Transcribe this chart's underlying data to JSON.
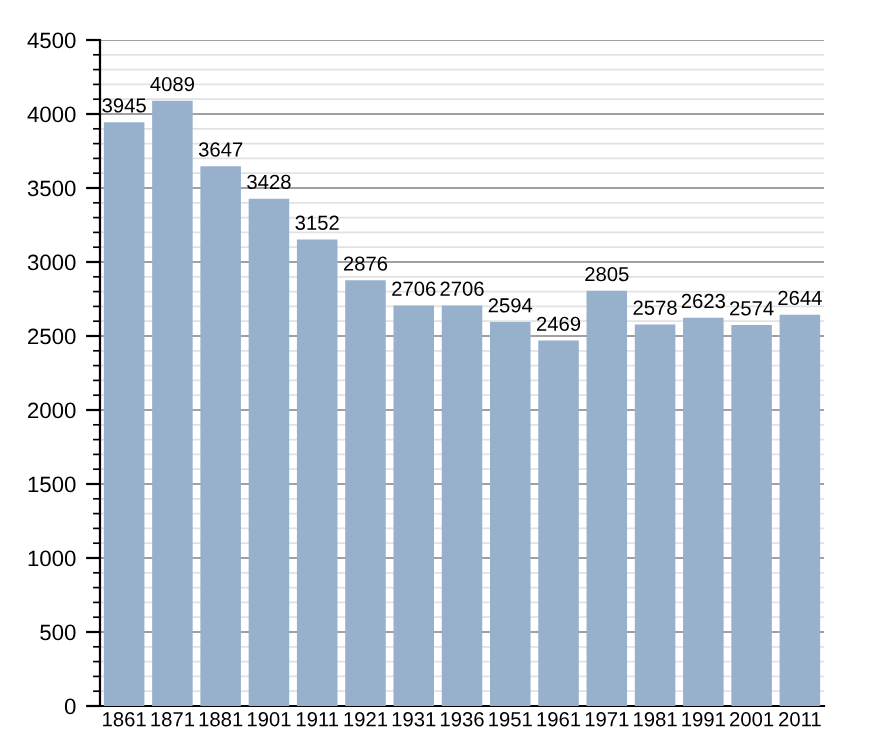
{
  "chart_data": {
    "type": "bar",
    "categories": [
      "1861",
      "1871",
      "1881",
      "1901",
      "1911",
      "1921",
      "1931",
      "1936",
      "1951",
      "1961",
      "1971",
      "1981",
      "1991",
      "2001",
      "2011"
    ],
    "values": [
      3945,
      4089,
      3647,
      3428,
      3152,
      2876,
      2706,
      2706,
      2594,
      2469,
      2805,
      2578,
      2623,
      2574,
      2644
    ],
    "color": "#97b0cc",
    "ylim": [
      0,
      4500
    ],
    "yticks": [
      0,
      500,
      1000,
      1500,
      2000,
      2500,
      3000,
      3500,
      4000,
      4500
    ],
    "grid": "y",
    "data_labels": true
  }
}
